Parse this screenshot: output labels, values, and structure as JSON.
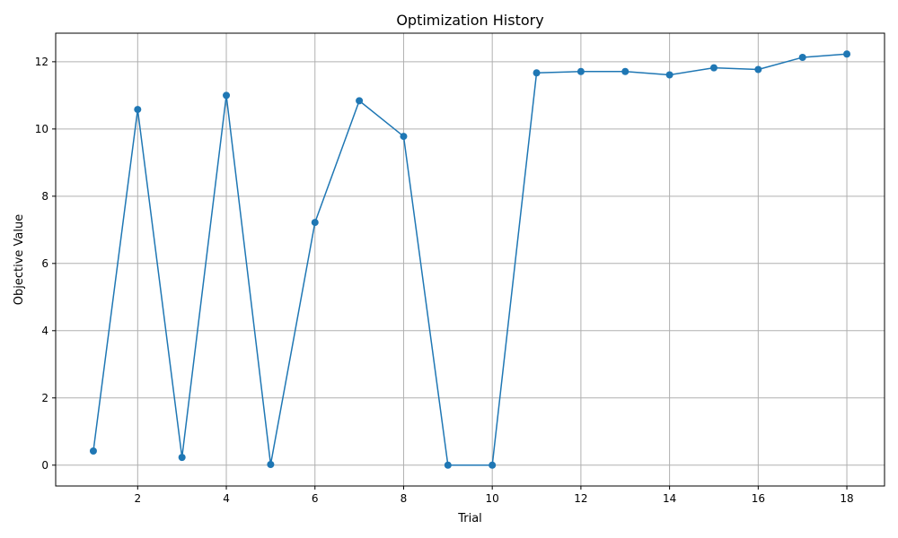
{
  "chart_data": {
    "type": "line",
    "title": "Optimization History",
    "xlabel": "Trial",
    "ylabel": "Objective Value",
    "xlim": [
      0.15,
      18.85
    ],
    "ylim": [
      -0.62,
      12.85
    ],
    "xticks": [
      2,
      4,
      6,
      8,
      10,
      12,
      14,
      16,
      18
    ],
    "yticks": [
      0,
      2,
      4,
      6,
      8,
      10,
      12
    ],
    "grid": true,
    "legend": "none",
    "series": [
      {
        "color": "#1f77b4",
        "marker": "circle",
        "x": [
          1,
          2,
          3,
          4,
          5,
          6,
          7,
          8,
          9,
          10,
          11,
          12,
          13,
          14,
          15,
          16,
          17,
          18
        ],
        "y": [
          0.42,
          10.58,
          0.23,
          11.0,
          0.02,
          7.22,
          10.84,
          9.78,
          0.0,
          0.0,
          11.67,
          11.71,
          11.71,
          11.61,
          11.82,
          11.77,
          12.13,
          12.23
        ]
      }
    ]
  },
  "colors": {
    "line": "#1f77b4",
    "grid": "#b0b0b0",
    "axis": "#000000"
  }
}
